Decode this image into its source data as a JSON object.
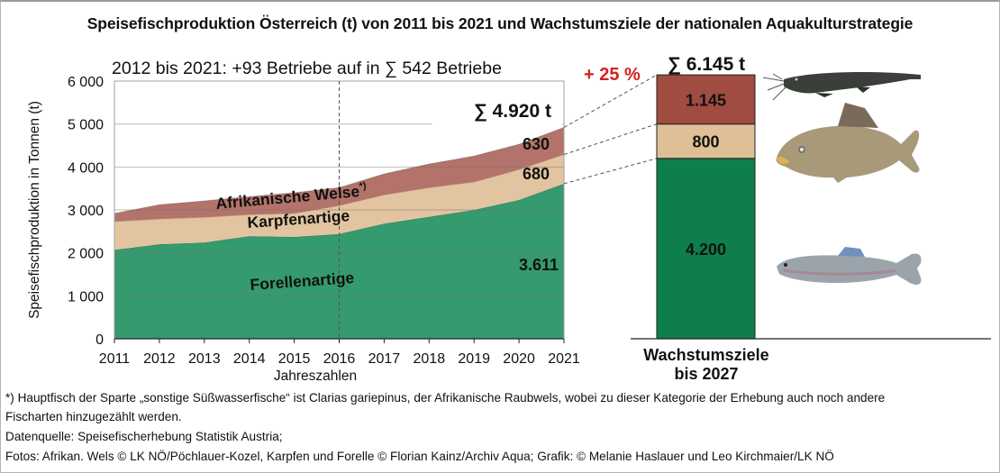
{
  "title": "Speisefischproduktion Österreich (t) von 2011 bis 2021 und Wachstumsziele der nationalen Aquakulturstrategie",
  "chart_data": [
    {
      "type": "area",
      "stacked": true,
      "subtitle": "2012 bis 2021: +93 Betriebe auf in ∑ 542 Betriebe",
      "xlabel": "Jahreszahlen",
      "ylabel": "Speisefischproduktion in Tonnen (t)",
      "x": [
        "2011",
        "2012",
        "2013",
        "2014",
        "2015",
        "2016",
        "2017",
        "2018",
        "2019",
        "2020",
        "2021"
      ],
      "ylim": [
        0,
        6000
      ],
      "yticks": [
        0,
        1000,
        2000,
        3000,
        4000,
        5000,
        6000
      ],
      "ytick_labels": [
        "0",
        "1 000",
        "2 000",
        "3 000",
        "4 000",
        "5 000",
        "6 000"
      ],
      "grid": true,
      "reference_line_x": "2016",
      "series": [
        {
          "name": "Forellenartige",
          "color": "#359a6e",
          "values": [
            2070,
            2200,
            2240,
            2390,
            2370,
            2440,
            2680,
            2840,
            3000,
            3230,
            3611
          ]
        },
        {
          "name": "Karpfenartige",
          "color": "#e3c4a0",
          "values": [
            660,
            590,
            590,
            500,
            550,
            660,
            670,
            680,
            650,
            710,
            680
          ]
        },
        {
          "name": "Afrikanische Welse",
          "superscript": "*)",
          "color": "#b3736a",
          "values": [
            190,
            330,
            380,
            420,
            480,
            420,
            490,
            550,
            605,
            590,
            630
          ]
        }
      ],
      "end_labels": {
        "Forellenartige": "3.611",
        "Karpfenartige": "680",
        "Afrikanische Welse": "630"
      },
      "total_label": "∑ 4.920 t"
    },
    {
      "type": "bar",
      "stacked": true,
      "categories": [
        "Wachstumsziele bis 2027"
      ],
      "category_label_lines": [
        "Wachstumsziele",
        "bis 2027"
      ],
      "series": [
        {
          "name": "Forellenartige",
          "color": "#0e7e4a",
          "values": [
            4200
          ],
          "label": "4.200"
        },
        {
          "name": "Karpfenartige",
          "color": "#dfbf95",
          "values": [
            800
          ],
          "label": "800"
        },
        {
          "name": "Afrikanische Welse",
          "color": "#a04c40",
          "values": [
            1145
          ],
          "label": "1.145"
        }
      ],
      "total_label": "∑ 6.145 t",
      "growth_label": "+ 25 %",
      "growth_color": "#d42020"
    }
  ],
  "images": [
    {
      "name": "catfish-image",
      "alt": "Afrikanischer Wels"
    },
    {
      "name": "carp-image",
      "alt": "Karpfen"
    },
    {
      "name": "trout-image",
      "alt": "Forelle"
    }
  ],
  "footnotes": [
    "*) Hauptfisch der Sparte „sonstige Süßwasserfische“ ist Clarias gariepinus, der Afrikanische Raubwels, wobei zu dieser Kategorie der Erhebung auch noch andere",
    "Fischarten hinzugezählt werden.",
    "Datenquelle: Speisefischerhebung Statistik Austria;",
    "Fotos: Afrikan. Wels © LK NÖ/Pöchlauer-Kozel, Karpfen und Forelle © Florian Kainz/Archiv Aqua; Grafik: © Melanie Haslauer und Leo Kirchmaier/LK NÖ"
  ]
}
